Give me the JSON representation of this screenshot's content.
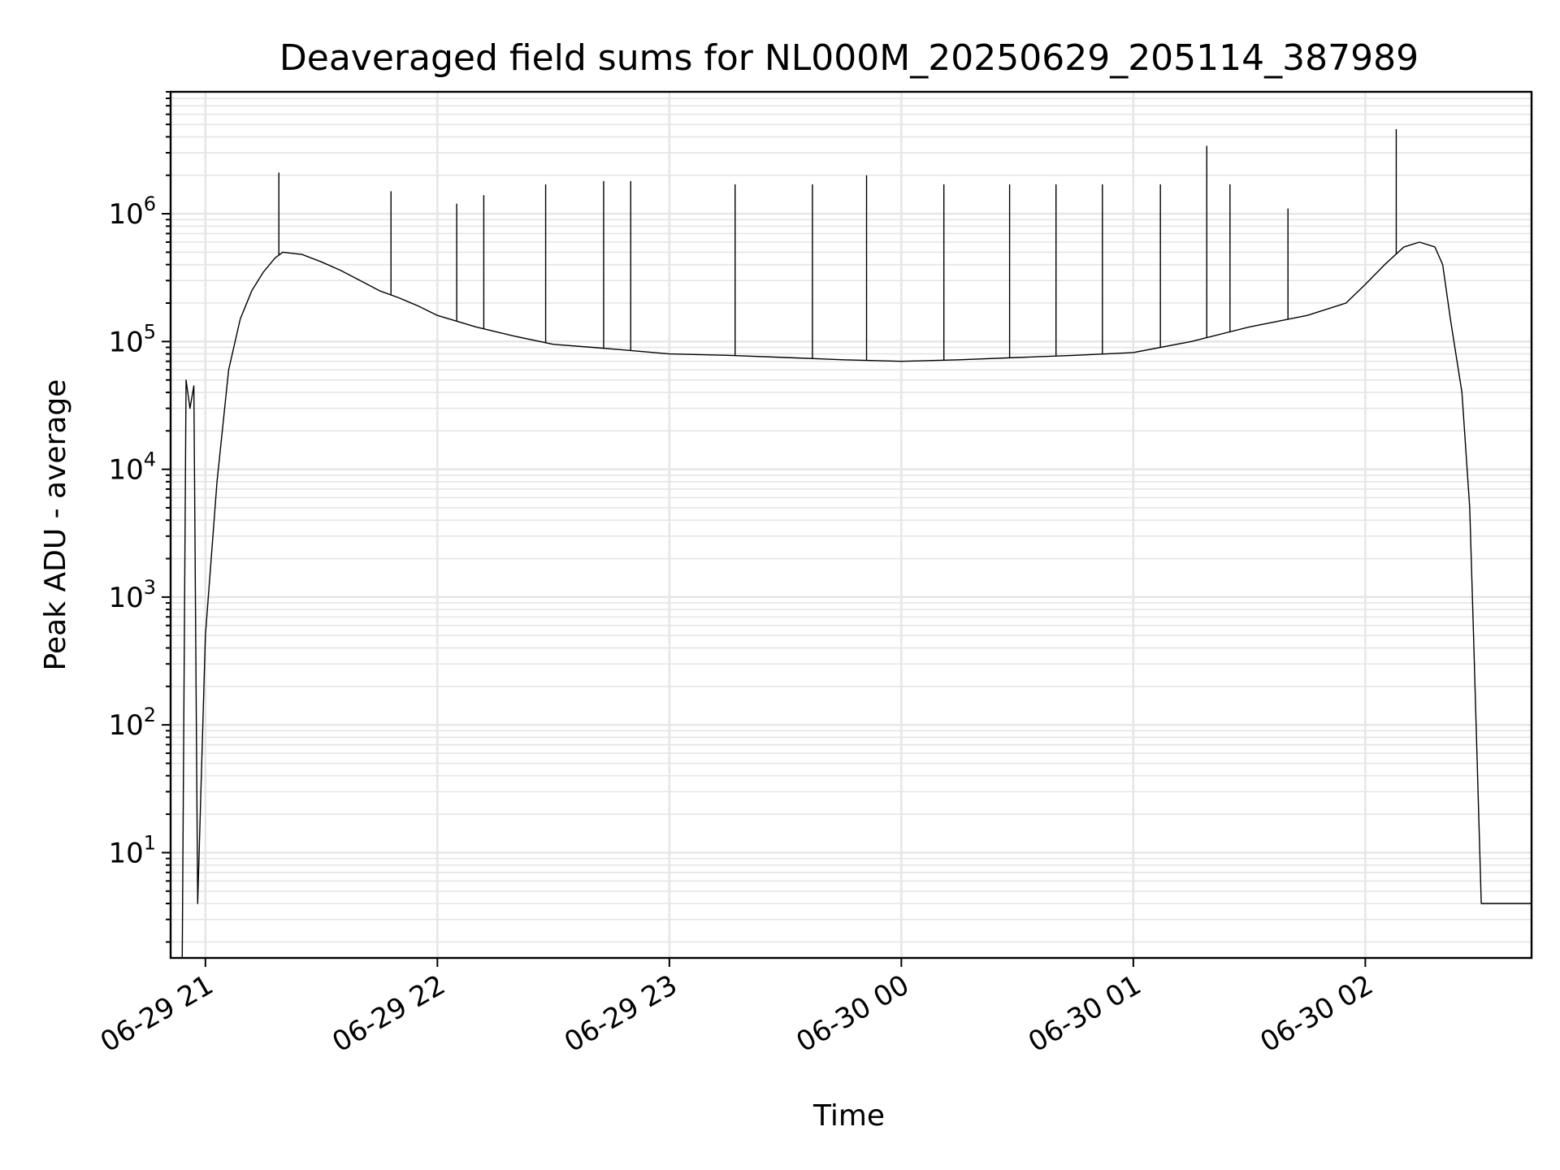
{
  "chart_data": {
    "type": "line",
    "title": "Deaveraged field sums for NL000M_20250629_205114_387989",
    "xlabel": "Time",
    "ylabel": "Peak ADU - average",
    "yscale": "log",
    "ylim": [
      1.5,
      9000000
    ],
    "xlim": [
      "2025-06-29 20:51",
      "2025-06-30 02:43"
    ],
    "grid": true,
    "x_ticks": [
      "2025-06-29 21:00",
      "2025-06-29 22:00",
      "2025-06-29 23:00",
      "2025-06-30 00:00",
      "2025-06-30 01:00",
      "2025-06-30 02:00"
    ],
    "x_tick_labels": [
      "06-29 21",
      "06-29 22",
      "06-29 23",
      "06-30 00",
      "06-30 01",
      "06-30 02"
    ],
    "y_ticks": [
      10,
      100,
      1000,
      10000,
      100000,
      1000000
    ],
    "y_tick_labels": [
      {
        "base": "10",
        "exp": "1"
      },
      {
        "base": "10",
        "exp": "2"
      },
      {
        "base": "10",
        "exp": "3"
      },
      {
        "base": "10",
        "exp": "4"
      },
      {
        "base": "10",
        "exp": "5"
      },
      {
        "base": "10",
        "exp": "6"
      }
    ],
    "series": [
      {
        "color": "#000000",
        "x": [
          "2025-06-29 20:54",
          "2025-06-29 20:55",
          "2025-06-29 20:56",
          "2025-06-29 20:57",
          "2025-06-29 20:58",
          "2025-06-29 21:00",
          "2025-06-29 21:03",
          "2025-06-29 21:06",
          "2025-06-29 21:09",
          "2025-06-29 21:12",
          "2025-06-29 21:15",
          "2025-06-29 21:18",
          "2025-06-29 21:20",
          "2025-06-29 21:25",
          "2025-06-29 21:30",
          "2025-06-29 21:35",
          "2025-06-29 21:40",
          "2025-06-29 21:45",
          "2025-06-29 21:50",
          "2025-06-29 21:55",
          "2025-06-29 22:00",
          "2025-06-29 22:10",
          "2025-06-29 22:20",
          "2025-06-29 22:30",
          "2025-06-29 22:40",
          "2025-06-29 22:50",
          "2025-06-29 23:00",
          "2025-06-29 23:15",
          "2025-06-29 23:30",
          "2025-06-29 23:45",
          "2025-06-30 00:00",
          "2025-06-30 00:15",
          "2025-06-30 00:30",
          "2025-06-30 00:45",
          "2025-06-30 01:00",
          "2025-06-30 01:15",
          "2025-06-30 01:30",
          "2025-06-30 01:45",
          "2025-06-30 01:55",
          "2025-06-30 02:00",
          "2025-06-30 02:05",
          "2025-06-30 02:10",
          "2025-06-30 02:14",
          "2025-06-30 02:18",
          "2025-06-30 02:20",
          "2025-06-30 02:22",
          "2025-06-30 02:25",
          "2025-06-30 02:27",
          "2025-06-30 02:28",
          "2025-06-30 02:30",
          "2025-06-30 02:35",
          "2025-06-30 02:40",
          "2025-06-30 02:43"
        ],
        "y": [
          1.5,
          50000,
          30000,
          45000,
          4,
          500,
          8000,
          60000,
          150000,
          250000,
          350000,
          450000,
          500000,
          480000,
          420000,
          360000,
          300000,
          250000,
          220000,
          190000,
          160000,
          130000,
          110000,
          95000,
          90000,
          85000,
          80000,
          78000,
          75000,
          72000,
          70000,
          72000,
          75000,
          78000,
          82000,
          100000,
          130000,
          160000,
          200000,
          280000,
          400000,
          550000,
          600000,
          550000,
          400000,
          150000,
          40000,
          5000,
          500,
          4,
          4,
          4,
          4
        ]
      }
    ],
    "spikes": [
      {
        "x": "2025-06-29 21:19",
        "y": 2100000
      },
      {
        "x": "2025-06-29 21:48",
        "y": 1500000
      },
      {
        "x": "2025-06-29 22:05",
        "y": 1200000
      },
      {
        "x": "2025-06-29 22:12",
        "y": 1400000
      },
      {
        "x": "2025-06-29 22:28",
        "y": 1700000
      },
      {
        "x": "2025-06-29 22:43",
        "y": 1800000
      },
      {
        "x": "2025-06-29 22:50",
        "y": 1800000
      },
      {
        "x": "2025-06-29 23:17",
        "y": 1700000
      },
      {
        "x": "2025-06-29 23:37",
        "y": 1700000
      },
      {
        "x": "2025-06-29 23:51",
        "y": 2000000
      },
      {
        "x": "2025-06-30 00:11",
        "y": 1700000
      },
      {
        "x": "2025-06-30 00:28",
        "y": 1700000
      },
      {
        "x": "2025-06-30 00:40",
        "y": 1700000
      },
      {
        "x": "2025-06-30 00:52",
        "y": 1700000
      },
      {
        "x": "2025-06-30 01:07",
        "y": 1700000
      },
      {
        "x": "2025-06-30 01:19",
        "y": 3400000
      },
      {
        "x": "2025-06-30 01:25",
        "y": 1700000
      },
      {
        "x": "2025-06-30 01:40",
        "y": 1100000
      },
      {
        "x": "2025-06-30 02:08",
        "y": 4600000
      }
    ]
  }
}
